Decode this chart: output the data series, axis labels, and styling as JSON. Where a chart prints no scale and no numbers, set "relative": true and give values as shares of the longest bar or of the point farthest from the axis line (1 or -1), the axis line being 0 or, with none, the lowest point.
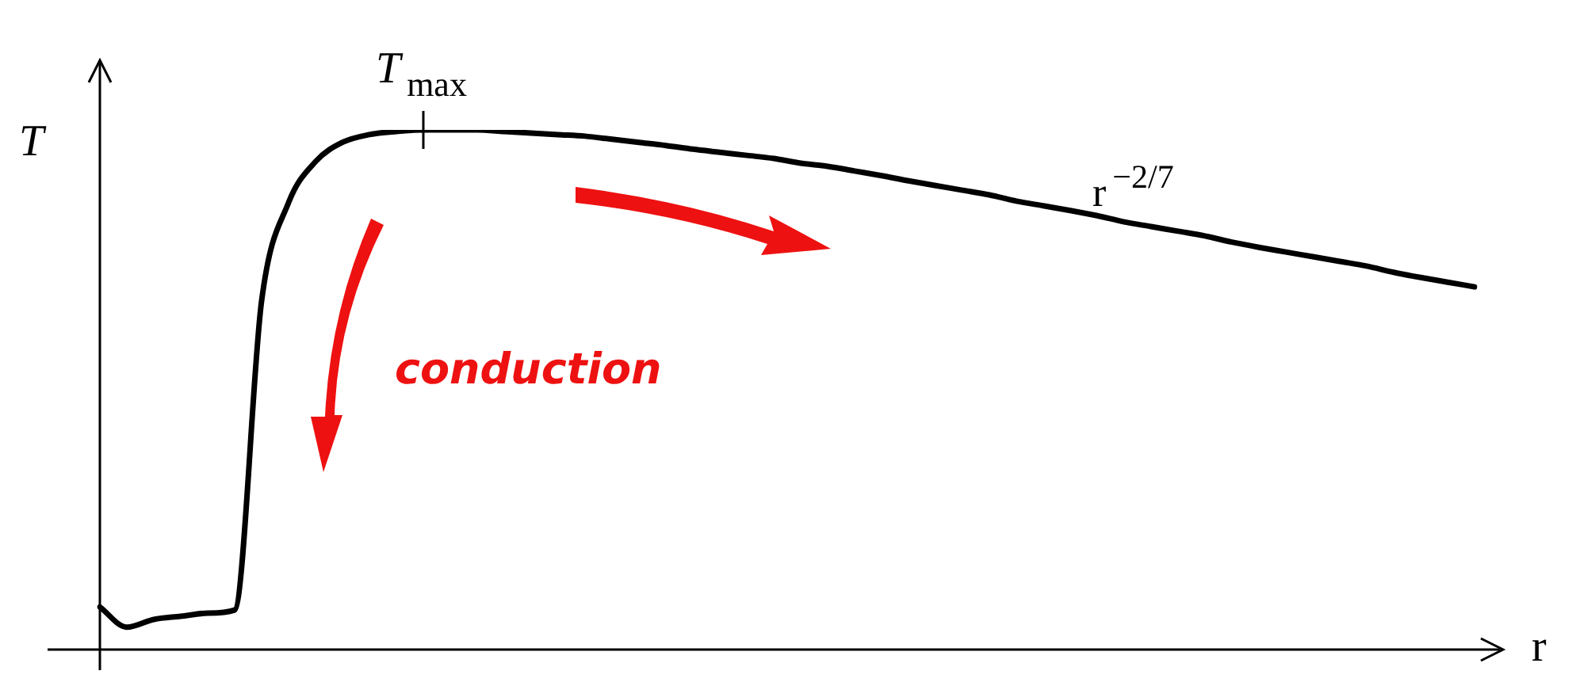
{
  "chart_data": {
    "type": "line",
    "relative": true,
    "xlabel": "r",
    "ylabel": "T",
    "categories": [
      null,
      null,
      null,
      null,
      null,
      null,
      null,
      null,
      null,
      null,
      null,
      null,
      null,
      null,
      null,
      null,
      null,
      null,
      null,
      null,
      null,
      null,
      null,
      null,
      null,
      null,
      null,
      null,
      null,
      null,
      null,
      null,
      null,
      null,
      null,
      null,
      null,
      null,
      null,
      null,
      null,
      null,
      null,
      null,
      null,
      null,
      null,
      null,
      null,
      null,
      null,
      null
    ],
    "series": [
      {
        "color": "#000000",
        "values": [
          0.082,
          0.043,
          0.058,
          0.064,
          0.07,
          0.076,
          0.671,
          0.86,
          0.939,
          0.976,
          0.991,
          0.997,
          1,
          1,
          1,
          0.997,
          0.994,
          0.991,
          0.988,
          0.982,
          0.976,
          0.97,
          0.963,
          0.957,
          0.951,
          0.945,
          0.936,
          0.93,
          0.921,
          0.912,
          0.902,
          0.893,
          0.884,
          0.875,
          0.863,
          0.854,
          0.845,
          0.835,
          0.823,
          0.814,
          0.805,
          0.796,
          0.784,
          0.774,
          0.765,
          0.756,
          0.747,
          0.738,
          0.726,
          0.716,
          0.707,
          0.698
        ]
      }
    ],
    "marker": "none",
    "line_style": "solid",
    "legend": false,
    "annotations": [
      "T$_{max}$",
      "r$^{−2/7}$",
      "conduction"
    ]
  }
}
